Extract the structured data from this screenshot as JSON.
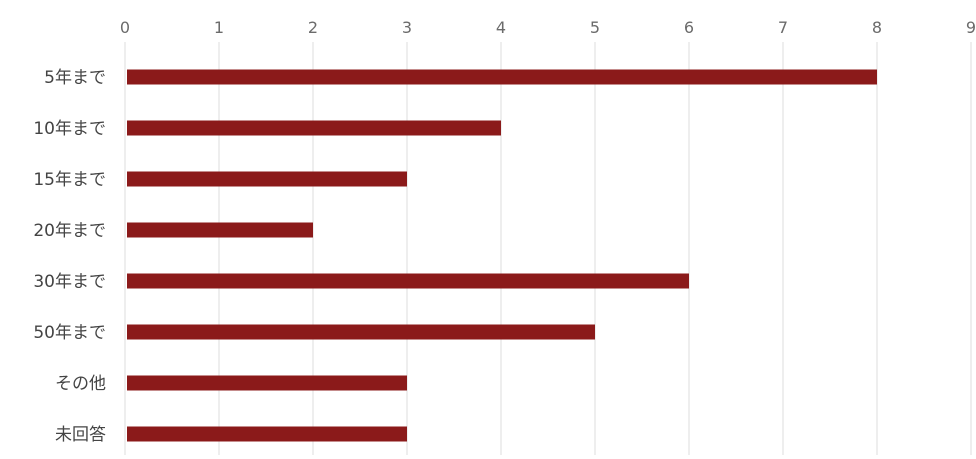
{
  "chart_data": {
    "type": "bar",
    "orientation": "horizontal",
    "categories": [
      "5年まで",
      "10年まで",
      "15年まで",
      "20年まで",
      "30年まで",
      "50年まで",
      "その他",
      "未回答"
    ],
    "values": [
      8,
      4,
      3,
      2,
      6,
      5,
      3,
      3
    ],
    "xlim": [
      0,
      9
    ],
    "x_ticks": [
      "0",
      "1",
      "2",
      "3",
      "4",
      "5",
      "6",
      "7",
      "8",
      "9"
    ],
    "x_axis_position": "top",
    "grid": true,
    "legend": "none",
    "colors": {
      "bar": "#8b1a1a",
      "grid": "#dcdcdc",
      "tick_text": "#6b6b6b",
      "category_text": "#444444"
    }
  }
}
